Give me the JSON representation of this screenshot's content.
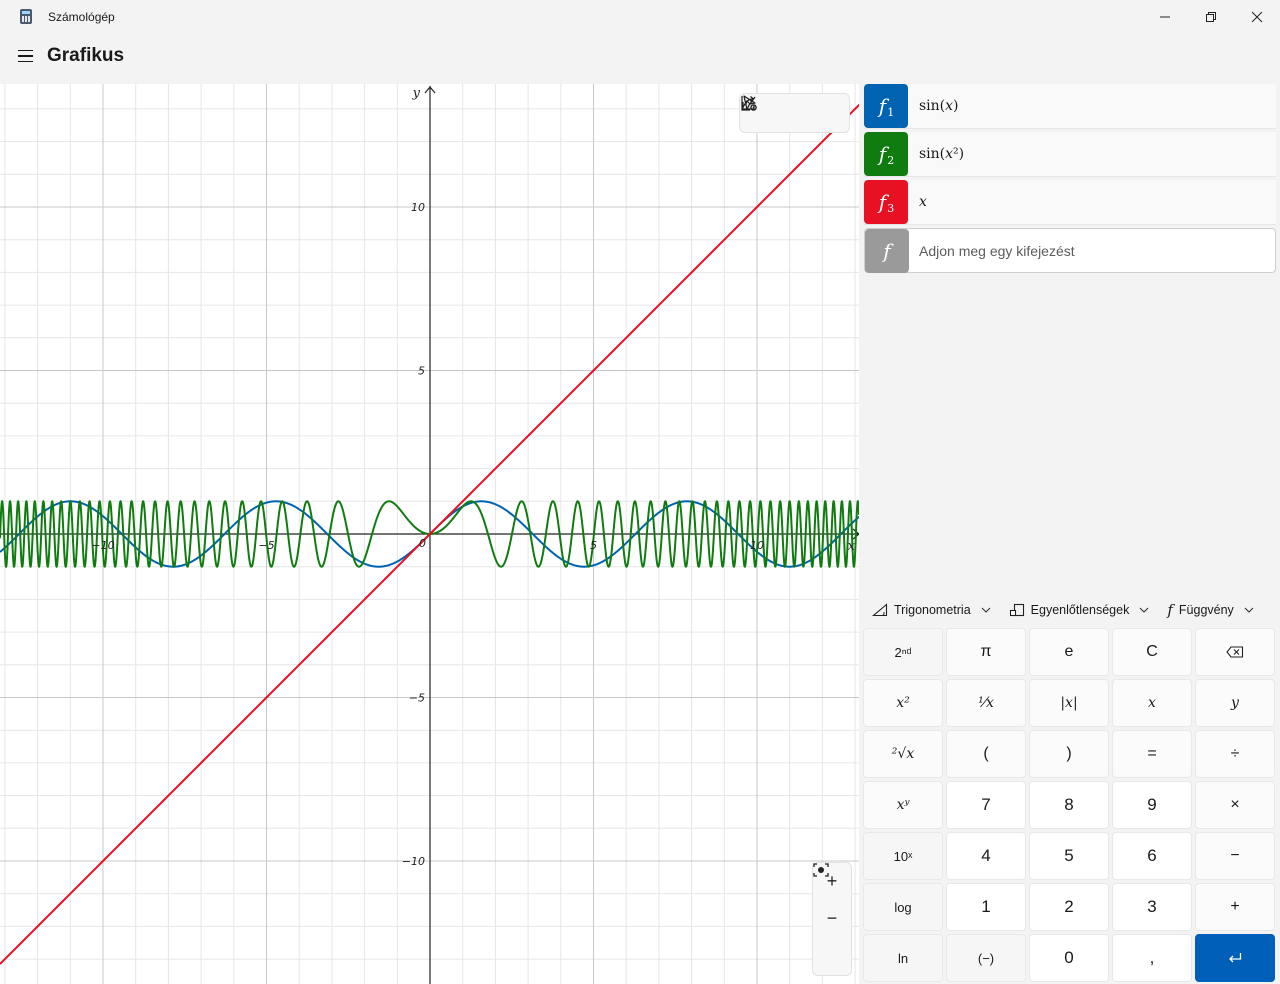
{
  "window": {
    "title": "Számológép",
    "minimize_glyph": "—",
    "restore_glyph": "❐",
    "close_glyph": "✕"
  },
  "header": {
    "title": "Grafikus"
  },
  "colors": {
    "f1": "#0063b1",
    "f2": "#107c10",
    "f3": "#e81123",
    "empty": "#9a9a9a",
    "accent": "#005fb8"
  },
  "graph": {
    "x_axis_label": "x",
    "y_axis_label": "y",
    "x_tick_labels": [
      "−10",
      "−5",
      "5",
      "10"
    ],
    "y_tick_labels": [
      "10",
      "5",
      "−5",
      "−10"
    ],
    "origin_label": "0"
  },
  "graph_toolbar": {
    "icons": [
      "cursor-icon",
      "share-icon",
      "graph-settings-icon"
    ]
  },
  "zoom": {
    "in_label": "+",
    "out_label": "−",
    "reset_icon": "zoom-fit-icon"
  },
  "functions": [
    {
      "badge": "f",
      "index": "1",
      "expression": "sin(𝑥)",
      "color": "#0063b1"
    },
    {
      "badge": "f",
      "index": "2",
      "expression": "sin(𝑥²)",
      "color": "#107c10"
    },
    {
      "badge": "f",
      "index": "3",
      "expression": "𝑥",
      "color": "#e81123"
    }
  ],
  "new_function": {
    "badge": "f",
    "placeholder": "Adjon meg egy kifejezést"
  },
  "keypad_tabs": [
    {
      "label": "Trigonometria",
      "icon": "triangle-icon"
    },
    {
      "label": "Egyenlőtlenségek",
      "icon": "inequality-icon"
    },
    {
      "label": "Függvény",
      "icon": "function-icon"
    }
  ],
  "keypad": [
    [
      "2ⁿᵈ",
      "π",
      "e",
      "C",
      "⌫"
    ],
    [
      "𝑥²",
      "¹⁄𝑥",
      "|𝑥|",
      "𝑥",
      "𝑦"
    ],
    [
      "²√𝑥",
      "(",
      ")",
      "=",
      "÷"
    ],
    [
      "𝑥ʸ",
      "7",
      "8",
      "9",
      "×"
    ],
    [
      "10ˣ",
      "4",
      "5",
      "6",
      "−"
    ],
    [
      "log",
      "1",
      "2",
      "3",
      "+"
    ],
    [
      "ln",
      "(−)",
      "0",
      ",",
      "↵"
    ]
  ]
}
